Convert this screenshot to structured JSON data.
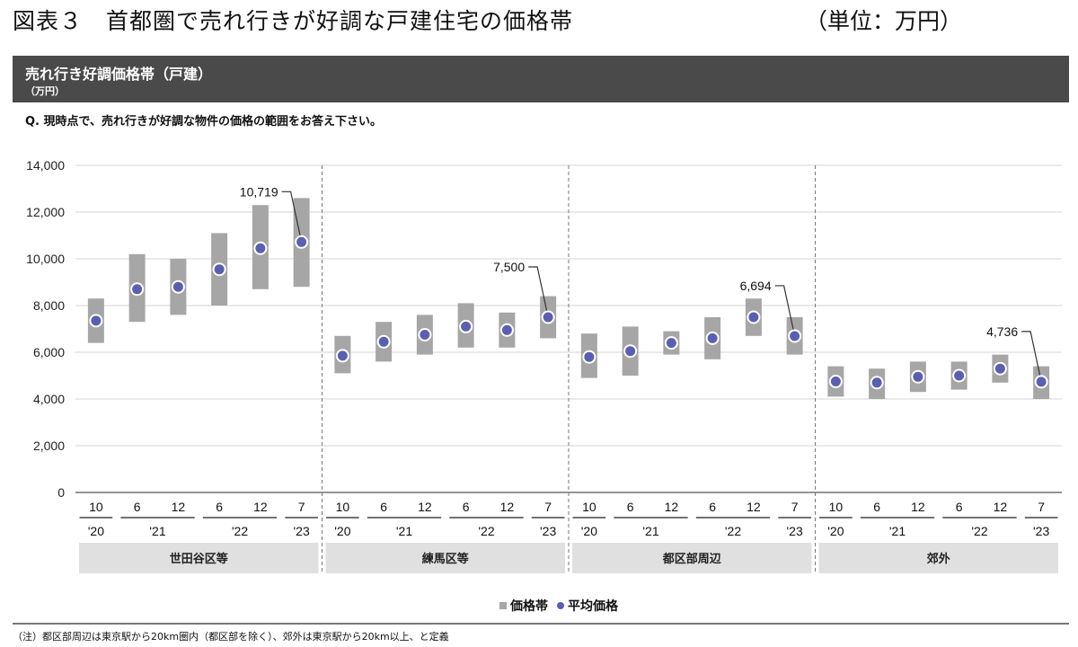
{
  "figure": {
    "title": "図表３　首都圏で売れ行きが好調な戸建住宅の価格帯",
    "unit": "（単位：万円）"
  },
  "header": {
    "title": "売れ行き好調価格帯（戸建）",
    "unit": "（万円）"
  },
  "question": "Q. 現時点で、売れ行きが好調な物件の価格の範囲をお答え下さい。",
  "legend": {
    "band": "価格帯",
    "mean": "平均価格"
  },
  "footnote": "（注）都区部周辺は東京駅から20km圏内（都区部を除く）、郊外は東京駅から20km以上、と定義",
  "colors": {
    "band": "#a6a6a6",
    "mean": "#5b5fb0",
    "region_bg": "#e0e0e0",
    "header_bg": "#4a4a4a"
  },
  "chart_data": {
    "type": "range-dot",
    "ylim": [
      0,
      14000
    ],
    "yticks": [
      "0",
      "2,000",
      "4,000",
      "6,000",
      "8,000",
      "10,000",
      "12,000",
      "14,000"
    ],
    "ytick_values": [
      0,
      2000,
      4000,
      6000,
      8000,
      10000,
      12000,
      14000
    ],
    "grid": true,
    "legend_position": "bottom-center",
    "months": [
      "10",
      "6",
      "12",
      "6",
      "12",
      "7"
    ],
    "years": [
      "'20",
      "'21",
      "'22",
      "'23"
    ],
    "series_names": [
      "価格帯",
      "平均価格"
    ],
    "groups": [
      {
        "region": "世田谷区等",
        "low": [
          6400,
          7300,
          7600,
          8000,
          8700,
          8800
        ],
        "high": [
          8300,
          10200,
          10000,
          11100,
          12300,
          12600
        ],
        "mean": [
          7350,
          8700,
          8800,
          9550,
          10450,
          10719
        ],
        "callout": "10,719"
      },
      {
        "region": "練馬区等",
        "low": [
          5100,
          5600,
          5900,
          6200,
          6200,
          6600
        ],
        "high": [
          6700,
          7300,
          7600,
          8100,
          7700,
          8400
        ],
        "mean": [
          5850,
          6450,
          6750,
          7100,
          6950,
          7500
        ],
        "callout": "7,500"
      },
      {
        "region": "都区部周辺",
        "low": [
          4900,
          5000,
          5900,
          5700,
          6700,
          5900
        ],
        "high": [
          6800,
          7100,
          6900,
          7500,
          8300,
          7500
        ],
        "mean": [
          5800,
          6050,
          6400,
          6600,
          7500,
          6694
        ],
        "callout": "6,694"
      },
      {
        "region": "郊外",
        "low": [
          4100,
          4000,
          4300,
          4400,
          4700,
          4000
        ],
        "high": [
          5400,
          5300,
          5600,
          5600,
          5900,
          5400
        ],
        "mean": [
          4750,
          4700,
          4950,
          5000,
          5300,
          4736
        ],
        "callout": "4,736"
      }
    ]
  }
}
